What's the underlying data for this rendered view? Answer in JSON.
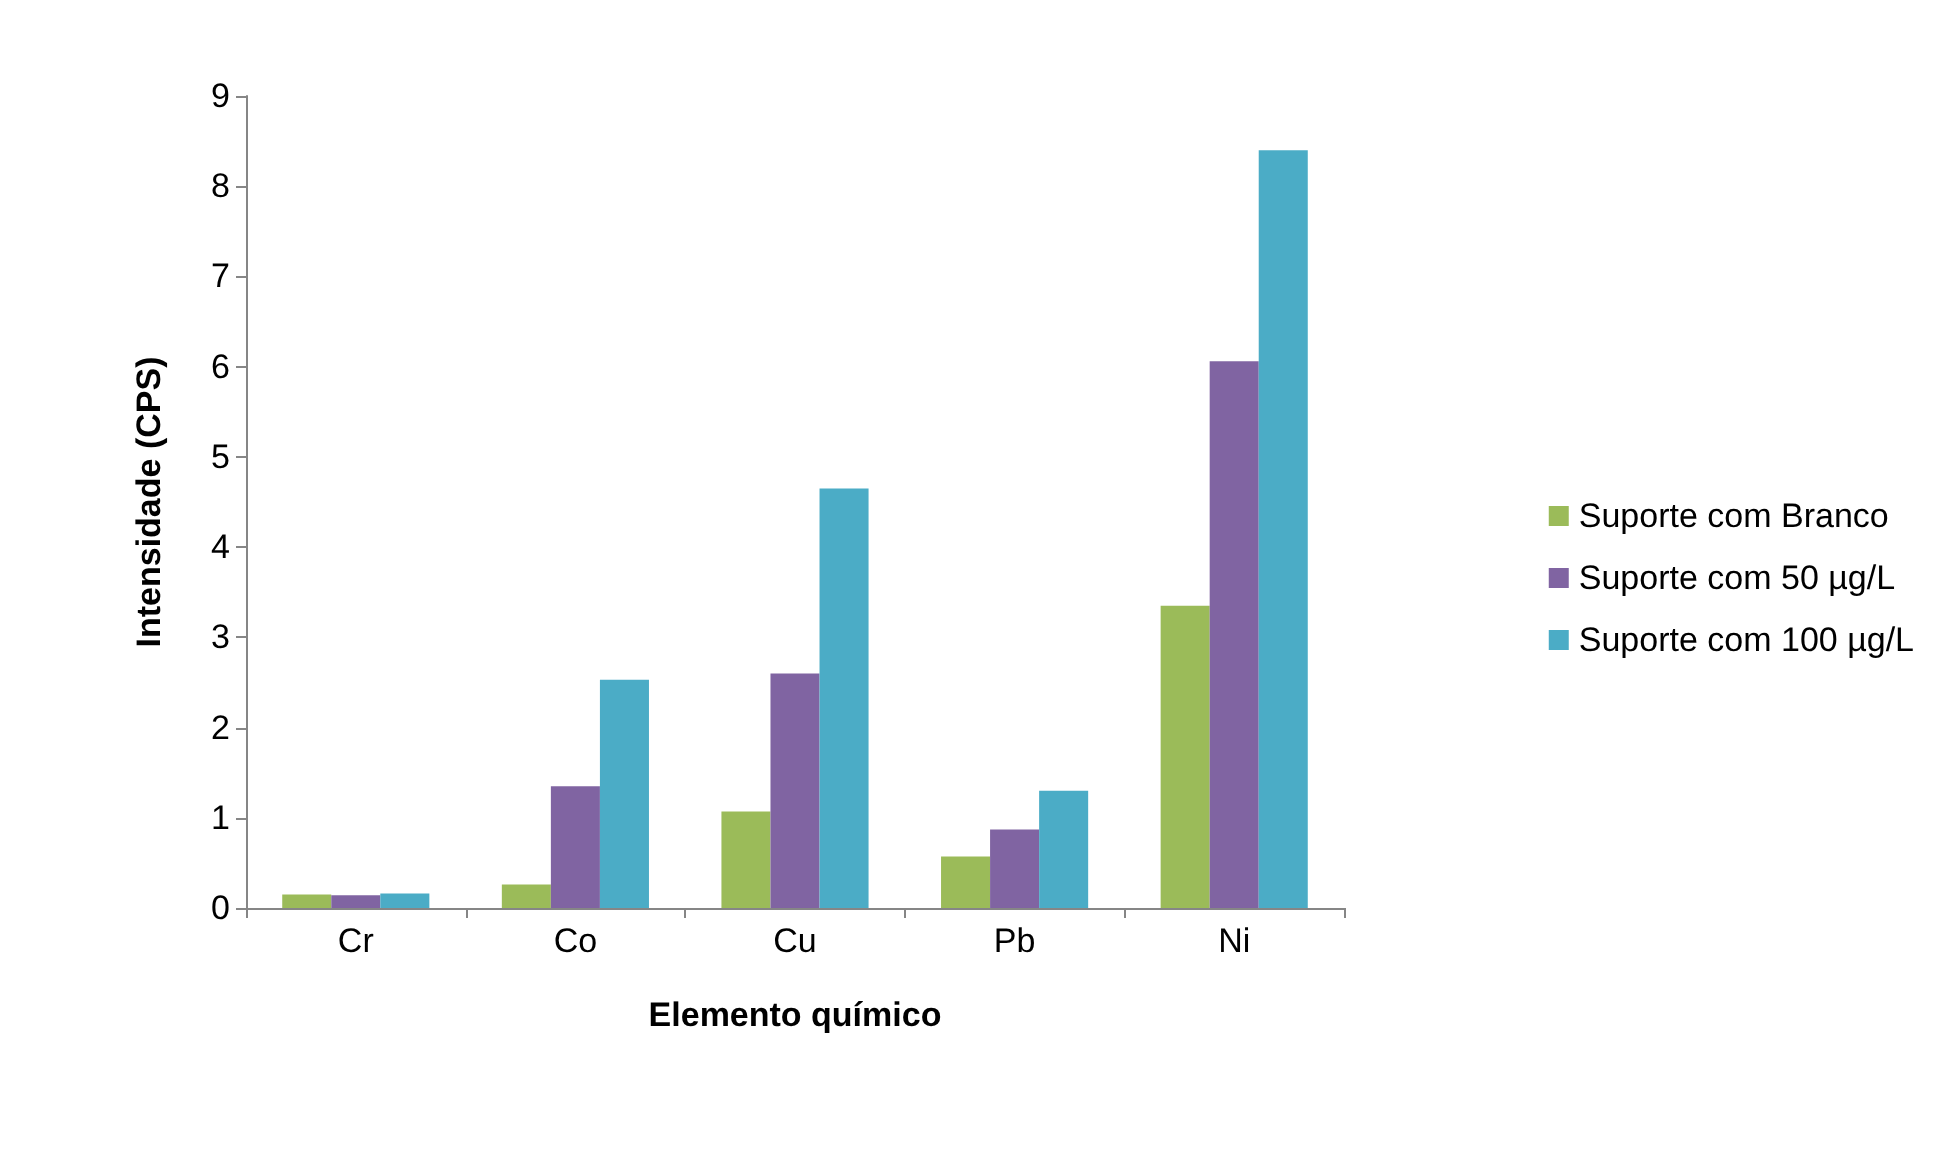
{
  "chart_data": {
    "type": "bar",
    "xlabel": "Elemento químico",
    "ylabel": "Intensidade (CPS)",
    "categories": [
      "Cr",
      "Co",
      "Cu",
      "Pb",
      "Ni"
    ],
    "series": [
      {
        "name": "Suporte com Branco",
        "color": "#9bbb59",
        "values": [
          0.15,
          0.26,
          1.07,
          0.57,
          3.35
        ]
      },
      {
        "name": "Suporte com 50 µg/L",
        "color": "#8064a2",
        "values": [
          0.14,
          1.35,
          2.6,
          0.87,
          6.06
        ]
      },
      {
        "name": "Suporte com 100 µg/L",
        "color": "#4bacc6",
        "values": [
          0.16,
          2.53,
          4.65,
          1.3,
          8.4
        ]
      }
    ],
    "ylim": [
      0,
      9
    ],
    "yticks": [
      0,
      1,
      2,
      3,
      4,
      5,
      6,
      7,
      8,
      9
    ],
    "grid": false,
    "legend": "right"
  }
}
